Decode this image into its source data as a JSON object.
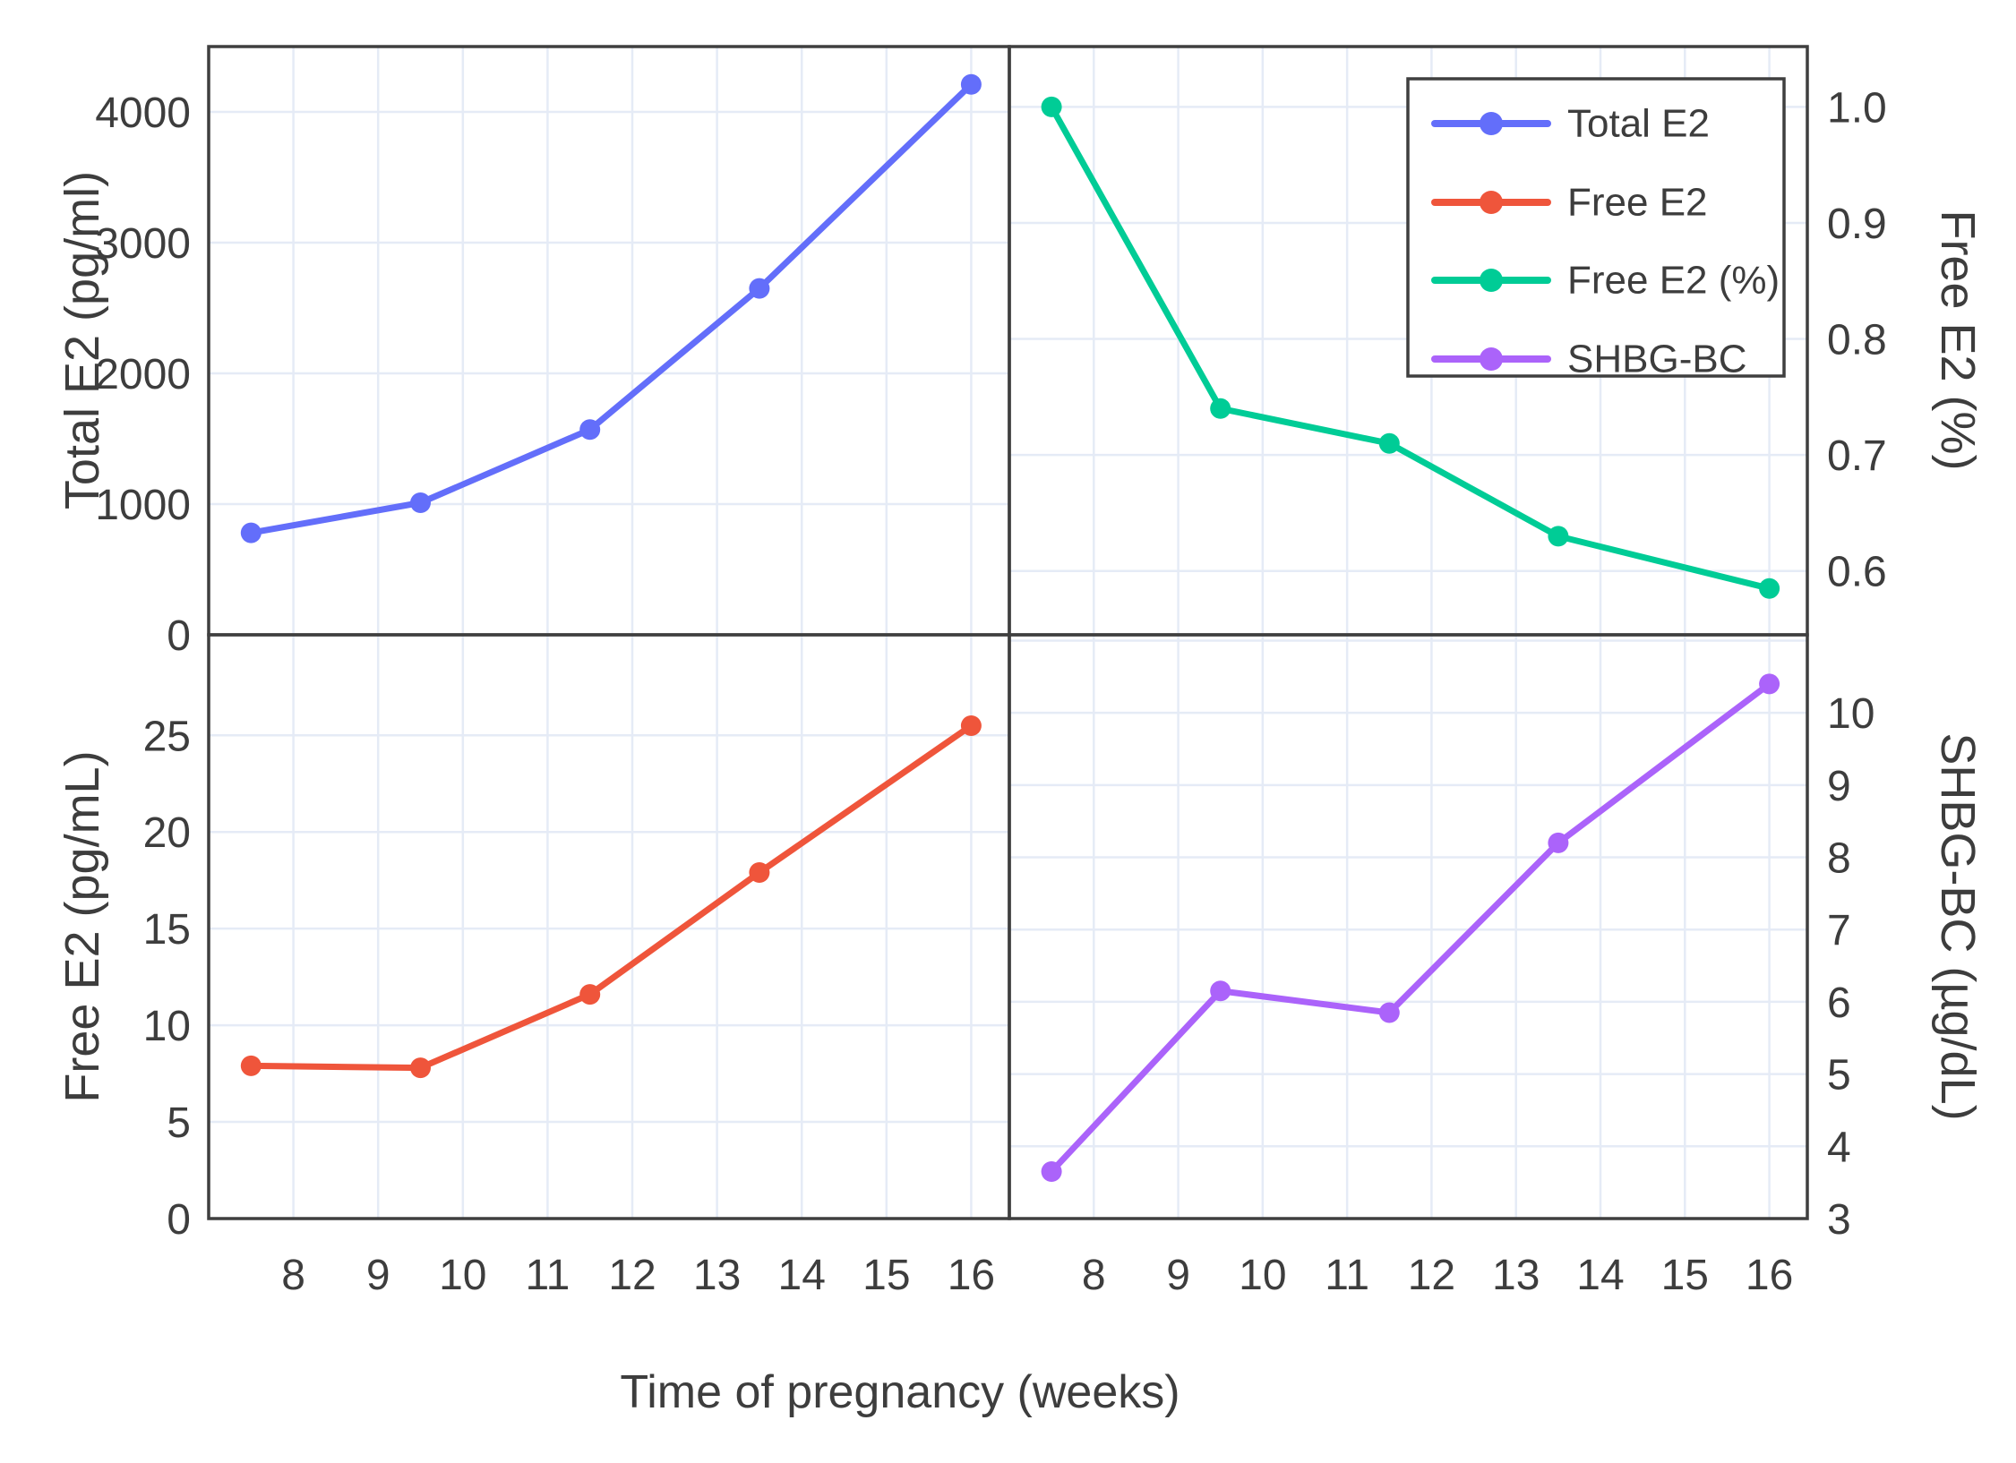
{
  "figure": {
    "x_axis": {
      "title": "Time of pregnancy (weeks)",
      "ticks": [
        8,
        9,
        10,
        11,
        12,
        13,
        14,
        15,
        16
      ],
      "range": [
        7.0,
        16.45
      ]
    },
    "panels": [
      {
        "position": "top-left",
        "y_axis": {
          "title": "Total E2 (pg/ml)",
          "side": "left",
          "ticks": [
            0,
            1000,
            2000,
            3000,
            4000
          ],
          "tick_labels": [
            "0",
            "1000",
            "2000",
            "3000",
            "4000"
          ],
          "range": [
            0,
            4500
          ]
        }
      },
      {
        "position": "top-right",
        "y_axis": {
          "title": "Free E2 (%)",
          "side": "right",
          "ticks": [
            1.0,
            0.9,
            0.8,
            0.7,
            0.6
          ],
          "tick_labels": [
            "1.0",
            "0.9",
            "0.8",
            "0.7",
            "0.6"
          ],
          "range": [
            0.545,
            1.052
          ]
        }
      },
      {
        "position": "bottom-left",
        "y_axis": {
          "title": "Free E2 (pg/mL)",
          "side": "left",
          "ticks": [
            0,
            5,
            10,
            15,
            20,
            25
          ],
          "tick_labels": [
            "0",
            "5",
            "10",
            "15",
            "20",
            "25"
          ],
          "range": [
            0,
            30.2
          ]
        }
      },
      {
        "position": "bottom-right",
        "y_axis": {
          "title": "SHBG-BC (µg/dL)",
          "side": "right",
          "ticks": [
            3,
            4,
            5,
            6,
            7,
            8,
            9,
            10
          ],
          "tick_labels": [
            "3",
            "4",
            "5",
            "6",
            "7",
            "8",
            "9",
            "10"
          ],
          "grid_values": [
            3,
            4,
            5,
            6,
            7,
            8,
            9,
            10,
            11
          ],
          "range": [
            3,
            11.08
          ]
        }
      }
    ],
    "legend": {
      "items": [
        {
          "label": "Total E2",
          "color": "#636EFA"
        },
        {
          "label": "Free E2",
          "color": "#EF553B"
        },
        {
          "label": "Free E2 (%)",
          "color": "#00CC96"
        },
        {
          "label": "SHBG-BC",
          "color": "#AB63FA"
        }
      ]
    },
    "style": {
      "grid_color": "#E5EBF6",
      "spine_color": "#3F3F3F",
      "text_color": "#3D3D3D",
      "background": "#FFFFFF"
    }
  },
  "chart_data": [
    {
      "type": "line",
      "name": "Total E2",
      "panel": "top-left",
      "color": "#636EFA",
      "x": [
        7.5,
        9.5,
        11.5,
        13.5,
        16
      ],
      "y": [
        780,
        1010,
        1570,
        2650,
        4210
      ],
      "xlabel": "Time of pregnancy (weeks)",
      "ylabel": "Total E2 (pg/ml)",
      "xlim": [
        7.0,
        16.45
      ],
      "ylim": [
        0,
        4500
      ],
      "grid": true,
      "legend_position": "top-right-panel"
    },
    {
      "type": "line",
      "name": "Free E2 (%)",
      "panel": "top-right",
      "color": "#00CC96",
      "x": [
        7.5,
        9.5,
        11.5,
        13.5,
        16
      ],
      "y": [
        1.0,
        0.74,
        0.71,
        0.63,
        0.585
      ],
      "xlabel": "Time of pregnancy (weeks)",
      "ylabel": "Free E2 (%)",
      "xlim": [
        7.0,
        16.45
      ],
      "ylim": [
        0.545,
        1.052
      ],
      "grid": true
    },
    {
      "type": "line",
      "name": "Free E2",
      "panel": "bottom-left",
      "color": "#EF553B",
      "x": [
        7.5,
        9.5,
        11.5,
        13.5,
        16
      ],
      "y": [
        7.9,
        7.8,
        11.6,
        17.9,
        25.5
      ],
      "xlabel": "Time of pregnancy (weeks)",
      "ylabel": "Free E2 (pg/mL)",
      "xlim": [
        7.0,
        16.45
      ],
      "ylim": [
        0,
        30.2
      ],
      "grid": true
    },
    {
      "type": "line",
      "name": "SHBG-BC",
      "panel": "bottom-right",
      "color": "#AB63FA",
      "x": [
        7.5,
        9.5,
        11.5,
        13.5,
        16
      ],
      "y": [
        3.65,
        6.15,
        5.85,
        8.2,
        10.4
      ],
      "xlabel": "Time of pregnancy (weeks)",
      "ylabel": "SHBG-BC (µg/dL)",
      "xlim": [
        7.0,
        16.45
      ],
      "ylim": [
        3,
        11.08
      ],
      "grid": true
    }
  ]
}
